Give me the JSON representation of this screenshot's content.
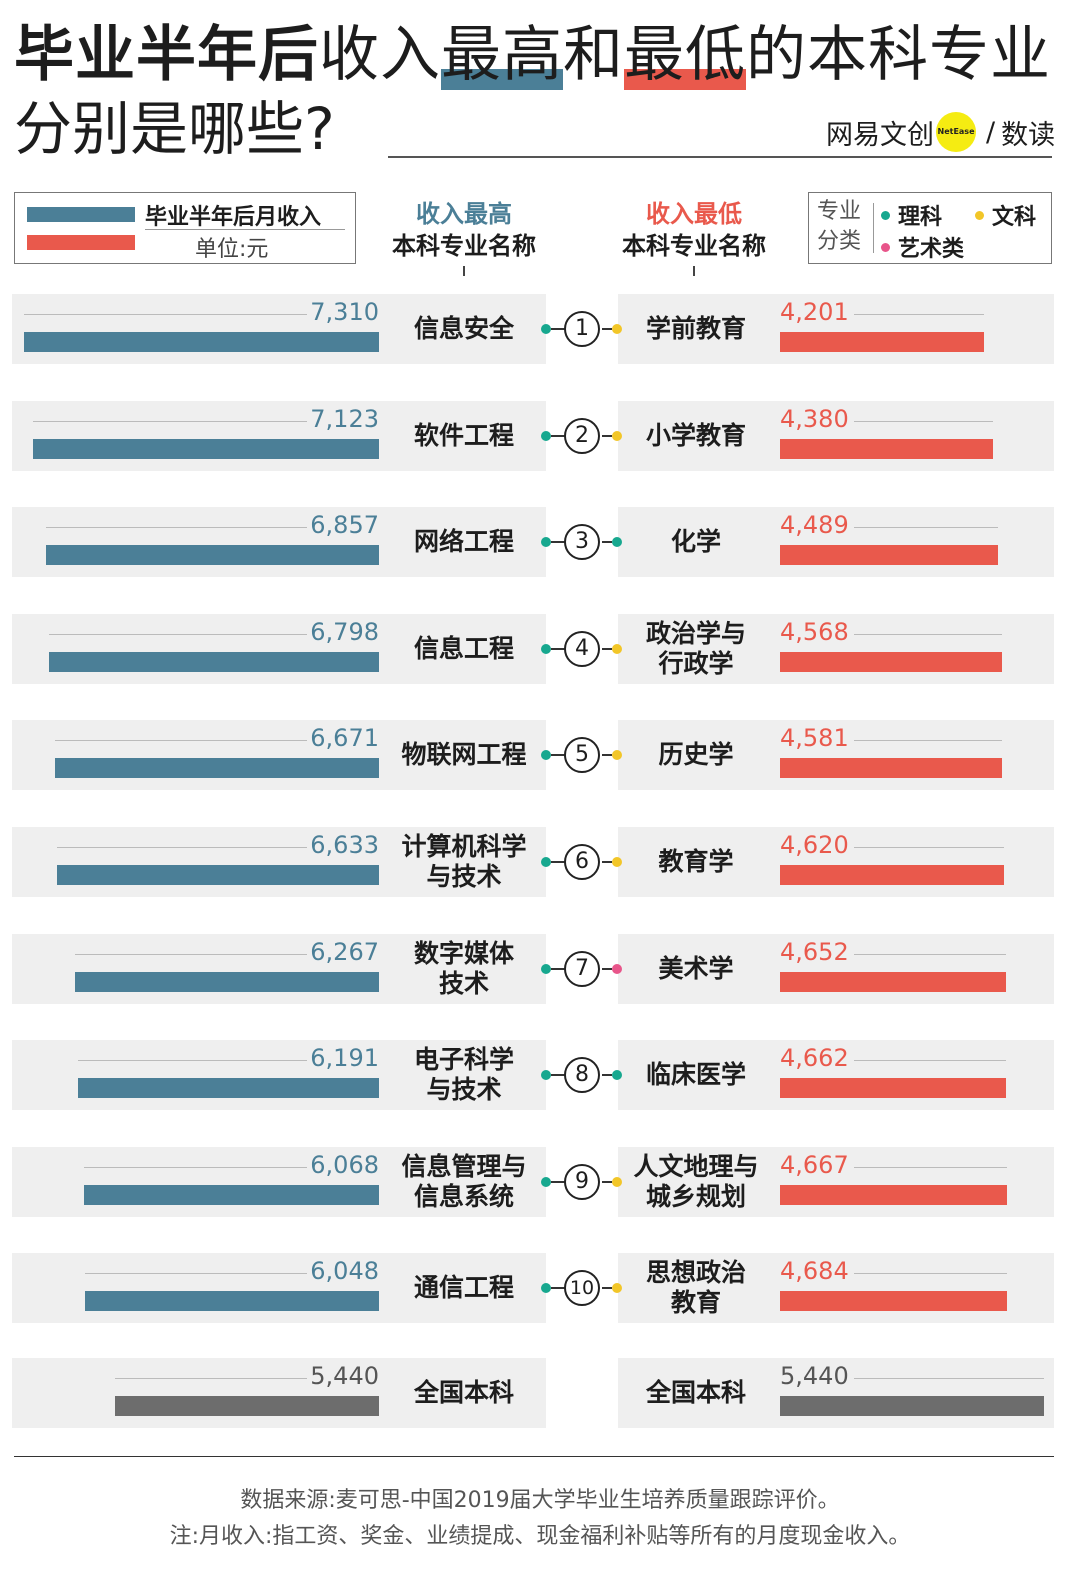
{
  "title": {
    "line1_part1": "毕业半年后",
    "line1_part2": "收入",
    "line1_highlight_high": "最高",
    "line1_mid": "和",
    "line1_highlight_low": "最低",
    "line1_part3": "的本科专业",
    "line2": "分别是哪些?"
  },
  "brand": {
    "name": "网易文创",
    "logo_text": "NetEase",
    "sep": "/",
    "sub": "数读"
  },
  "legend": {
    "label": "毕业半年后月收入",
    "unit": "单位:元",
    "high_color": "#4b7f97",
    "low_color": "#e9594c"
  },
  "headers": {
    "left_line1": "收入最高",
    "left_line2": "本科专业名称",
    "right_line1": "收入最低",
    "right_line2": "本科专业名称"
  },
  "category_legend": {
    "title_line1": "专业",
    "title_line2": "分类",
    "items": [
      {
        "label": "理科",
        "color": "#17a88f"
      },
      {
        "label": "文科",
        "color": "#f2c628"
      },
      {
        "label": "艺术类",
        "color": "#e8558a"
      }
    ]
  },
  "chart_data": {
    "type": "bar",
    "value_max": 7310,
    "rows": [
      {
        "rank": "1",
        "high_major": "信息安全",
        "high_value": 7310,
        "high_value_label": "7,310",
        "low_major": "学前教育",
        "low_value": 4201,
        "low_value_label": "4,201",
        "low_category": "文科"
      },
      {
        "rank": "2",
        "high_major": "软件工程",
        "high_value": 7123,
        "high_value_label": "7,123",
        "low_major": "小学教育",
        "low_value": 4380,
        "low_value_label": "4,380",
        "low_category": "文科"
      },
      {
        "rank": "3",
        "high_major": "网络工程",
        "high_value": 6857,
        "high_value_label": "6,857",
        "low_major": "化学",
        "low_value": 4489,
        "low_value_label": "4,489",
        "low_category": "理科"
      },
      {
        "rank": "4",
        "high_major": "信息工程",
        "high_value": 6798,
        "high_value_label": "6,798",
        "low_major": "政治学与\n行政学",
        "low_value": 4568,
        "low_value_label": "4,568",
        "low_category": "文科"
      },
      {
        "rank": "5",
        "high_major": "物联网工程",
        "high_value": 6671,
        "high_value_label": "6,671",
        "low_major": "历史学",
        "low_value": 4581,
        "low_value_label": "4,581",
        "low_category": "文科"
      },
      {
        "rank": "6",
        "high_major": "计算机科学\n与技术",
        "high_value": 6633,
        "high_value_label": "6,633",
        "low_major": "教育学",
        "low_value": 4620,
        "low_value_label": "4,620",
        "low_category": "文科"
      },
      {
        "rank": "7",
        "high_major": "数字媒体\n技术",
        "high_value": 6267,
        "high_value_label": "6,267",
        "low_major": "美术学",
        "low_value": 4652,
        "low_value_label": "4,652",
        "low_category": "艺术类"
      },
      {
        "rank": "8",
        "high_major": "电子科学\n与技术",
        "high_value": 6191,
        "high_value_label": "6,191",
        "low_major": "临床医学",
        "low_value": 4662,
        "low_value_label": "4,662",
        "low_category": "理科"
      },
      {
        "rank": "9",
        "high_major": "信息管理与\n信息系统",
        "high_value": 6068,
        "high_value_label": "6,068",
        "low_major": "人文地理与\n城乡规划",
        "low_value": 4667,
        "low_value_label": "4,667",
        "low_category": "文科"
      },
      {
        "rank": "10",
        "high_major": "通信工程",
        "high_value": 6048,
        "high_value_label": "6,048",
        "low_major": "思想政治\n教育",
        "low_value": 4684,
        "low_value_label": "4,684",
        "low_category": "文科"
      }
    ],
    "national": {
      "label": "全国本科",
      "value": 5440,
      "value_label": "5,440",
      "color": "#6d6d6d"
    }
  },
  "footer": {
    "source": "数据来源:麦可思-中国2019届大学毕业生培养质量跟踪评价。",
    "note": "注:月收入:指工资、奖金、业绩提成、现金福利补贴等所有的月度现金收入。"
  }
}
